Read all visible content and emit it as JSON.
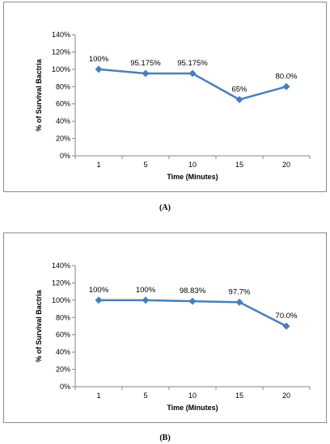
{
  "chart_data": [
    {
      "type": "line",
      "categories": [
        "1",
        "5",
        "10",
        "15",
        "20"
      ],
      "values": [
        100,
        95.175,
        95.175,
        65,
        80
      ],
      "data_labels": [
        "100%",
        "95.175%",
        "95.175%",
        "65%",
        "80.0%"
      ],
      "xlabel": "Time (Minutes)",
      "ylabel": "% of Survival Bactria",
      "yticks": [
        "0%",
        "20%",
        "40%",
        "60%",
        "80%",
        "100%",
        "120%",
        "140%"
      ],
      "ylim": [
        0,
        140
      ],
      "grid": false,
      "color": "#4a7ebb",
      "caption": "(A)"
    },
    {
      "type": "line",
      "categories": [
        "1",
        "5",
        "10",
        "15",
        "20"
      ],
      "values": [
        100,
        100,
        98.83,
        97.7,
        70
      ],
      "data_labels": [
        "100%",
        "100%",
        "98.83%",
        "97.7%",
        "70.0%"
      ],
      "xlabel": "Time (Minutes)",
      "ylabel": "% of Survival Bactria",
      "yticks": [
        "0%",
        "20%",
        "40%",
        "60%",
        "80%",
        "100%",
        "120%",
        "140%"
      ],
      "ylim": [
        0,
        140
      ],
      "grid": false,
      "color": "#4a7ebb",
      "caption": "(B)"
    }
  ]
}
